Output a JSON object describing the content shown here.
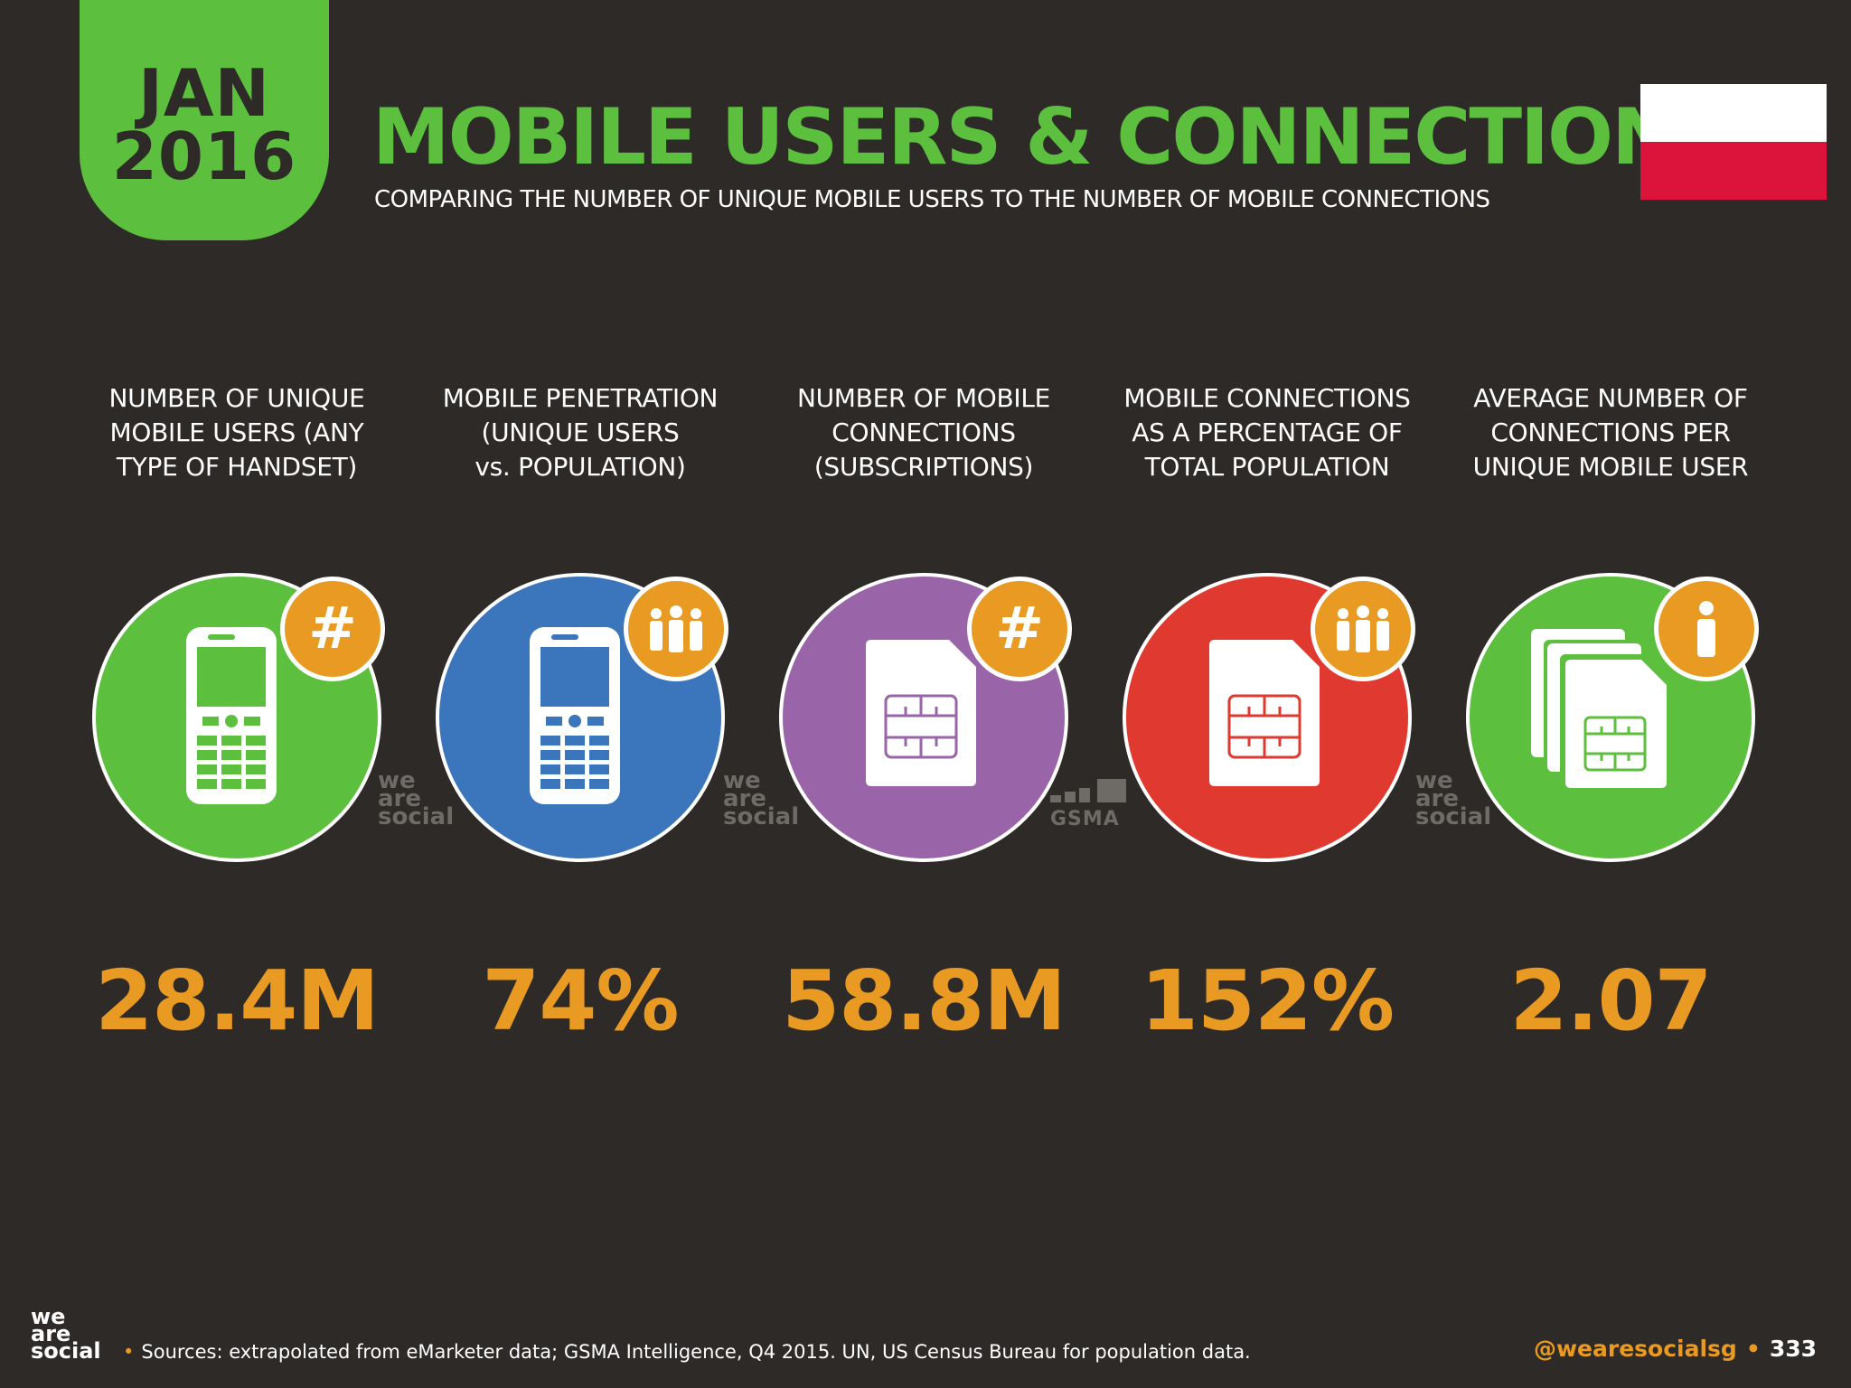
{
  "header": {
    "date_month": "JAN",
    "date_year": "2016",
    "title": "MOBILE USERS & CONNECTIONS",
    "subtitle": "COMPARING THE NUMBER OF UNIQUE MOBILE USERS TO THE NUMBER OF MOBILE CONNECTIONS"
  },
  "flag": {
    "name": "Poland",
    "colors": [
      "#ffffff",
      "#dc143c"
    ]
  },
  "stats": [
    {
      "label_lines": [
        "NUMBER OF UNIQUE",
        "MOBILE USERS (ANY",
        "TYPE OF HANDSET)"
      ],
      "value": "28.4M",
      "circle_color": "#5cbf3e",
      "icon": "mobile-phone-icon",
      "badge_icon": "hash-icon",
      "watermark": [
        "we",
        "are",
        "social"
      ]
    },
    {
      "label_lines": [
        "MOBILE PENETRATION",
        "(UNIQUE USERS",
        "vs. POPULATION)"
      ],
      "value": "74%",
      "circle_color": "#3b75bb",
      "icon": "mobile-phone-icon",
      "badge_icon": "people-icon",
      "watermark": [
        "we",
        "are",
        "social"
      ]
    },
    {
      "label_lines": [
        "NUMBER OF MOBILE",
        "CONNECTIONS",
        "(SUBSCRIPTIONS)"
      ],
      "value": "58.8M",
      "circle_color": "#9a65a8",
      "icon": "sim-card-icon",
      "badge_icon": "hash-icon",
      "watermark": [
        "GSMA"
      ]
    },
    {
      "label_lines": [
        "MOBILE CONNECTIONS",
        "AS A PERCENTAGE OF",
        "TOTAL POPULATION"
      ],
      "value": "152%",
      "circle_color": "#e03a30",
      "icon": "sim-card-icon",
      "badge_icon": "people-icon",
      "watermark": [
        "we",
        "are",
        "social"
      ]
    },
    {
      "label_lines": [
        "AVERAGE NUMBER OF",
        "CONNECTIONS PER",
        "UNIQUE MOBILE USER"
      ],
      "value": "2.07",
      "circle_color": "#5cbf3e",
      "icon": "sim-cards-stack-icon",
      "badge_icon": "person-icon",
      "watermark": []
    }
  ],
  "footer": {
    "logo": [
      "we",
      "are",
      "social"
    ],
    "sources": "Sources: extrapolated from eMarketer data; GSMA Intelligence, Q4 2015. UN, US Census Bureau for population data.",
    "handle": "@wearesocialsg",
    "page_number": "333"
  }
}
